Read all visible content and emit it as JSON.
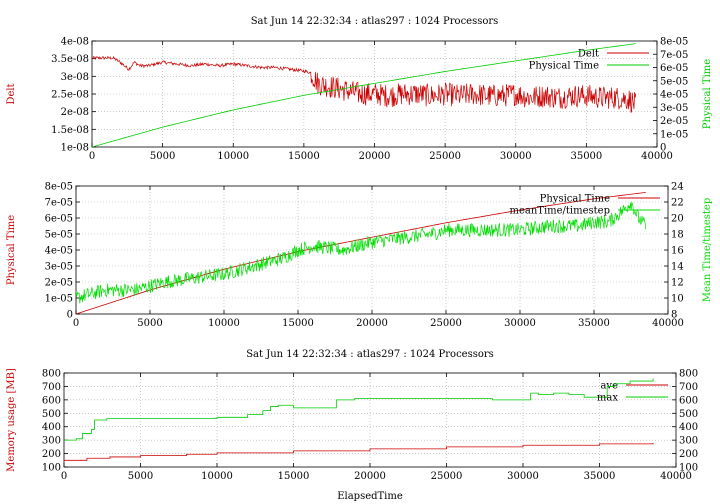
{
  "chart_data": [
    {
      "type": "line",
      "title": "Sat Jun 14 22:32:34 : atlas297 : 1024 Processors",
      "xlabel": "",
      "ylabel": "Delt",
      "y2label": "Physical Time",
      "xlim": [
        0,
        40000
      ],
      "ylim": [
        1e-08,
        4e-08
      ],
      "y2lim": [
        0,
        8e-05
      ],
      "xticks": [
        "0",
        "5000",
        "10000",
        "15000",
        "20000",
        "25000",
        "30000",
        "35000",
        "40000"
      ],
      "yticks": [
        "1e-08",
        "1.5e-08",
        "2e-08",
        "2.5e-08",
        "3e-08",
        "3.5e-08",
        "4e-08"
      ],
      "y2ticks": [
        "0",
        "1e-05",
        "2e-05",
        "3e-05",
        "4e-05",
        "5e-05",
        "6e-05",
        "7e-05",
        "8e-05"
      ],
      "grid": true,
      "legend_position": "top-right",
      "series": [
        {
          "name": "Delt",
          "axis": "y",
          "color": "#cc0000",
          "style": "noisy",
          "x": [
            0,
            1500,
            2000,
            2600,
            3000,
            3400,
            4000,
            5000,
            6000,
            7000,
            8000,
            9000,
            10000,
            11000,
            12000,
            13000,
            14000,
            15000,
            15500,
            16000,
            17000,
            18000,
            19000,
            20000,
            21000,
            22000,
            23000,
            24000,
            25000,
            26000,
            27000,
            28000,
            29000,
            30000,
            31000,
            32000,
            33000,
            34000,
            35000,
            36000,
            37000,
            38000,
            38500
          ],
          "y": [
            3.52e-08,
            3.52e-08,
            3.4e-08,
            3.2e-08,
            3.4e-08,
            3.3e-08,
            3.3e-08,
            3.4e-08,
            3.35e-08,
            3.3e-08,
            3.35e-08,
            3.3e-08,
            3.35e-08,
            3.3e-08,
            3.25e-08,
            3.25e-08,
            3.2e-08,
            3.15e-08,
            3.1e-08,
            2.8e-08,
            2.7e-08,
            2.6e-08,
            2.5e-08,
            2.5e-08,
            2.45e-08,
            2.5e-08,
            2.5e-08,
            2.45e-08,
            2.5e-08,
            2.45e-08,
            2.5e-08,
            2.45e-08,
            2.45e-08,
            2.5e-08,
            2.4e-08,
            2.45e-08,
            2.4e-08,
            2.45e-08,
            2.45e-08,
            2.4e-08,
            2.4e-08,
            2.35e-08,
            2.2e-08
          ]
        },
        {
          "name": "Physical Time",
          "axis": "y2",
          "color": "#00cc00",
          "style": "smooth",
          "x": [
            0,
            5000,
            10000,
            15000,
            20000,
            25000,
            30000,
            35000,
            38500
          ],
          "y": [
            0,
            1.5e-05,
            2.8e-05,
            3.9e-05,
            4.8e-05,
            5.7e-05,
            6.5e-05,
            7.3e-05,
            7.8e-05
          ]
        }
      ]
    },
    {
      "type": "line",
      "title": "",
      "xlabel": "",
      "ylabel": "Physical Time",
      "y2label": "Mean Time/timestep",
      "xlim": [
        0,
        40000
      ],
      "ylim": [
        0,
        8e-05
      ],
      "y2lim": [
        8,
        24
      ],
      "xticks": [
        "0",
        "5000",
        "10000",
        "15000",
        "20000",
        "25000",
        "30000",
        "35000",
        "40000"
      ],
      "yticks": [
        "0",
        "1e-05",
        "2e-05",
        "3e-05",
        "4e-05",
        "5e-05",
        "6e-05",
        "7e-05",
        "8e-05"
      ],
      "y2ticks": [
        "8",
        "10",
        "12",
        "14",
        "16",
        "18",
        "20",
        "22",
        "24"
      ],
      "grid": true,
      "legend_position": "top-right",
      "series": [
        {
          "name": "Physical Time",
          "axis": "y",
          "color": "#cc0000",
          "style": "smooth",
          "x": [
            0,
            5000,
            10000,
            15000,
            20000,
            25000,
            30000,
            35000,
            38500
          ],
          "y": [
            0,
            1.5e-05,
            2.8e-05,
            3.9e-05,
            4.8e-05,
            5.7e-05,
            6.5e-05,
            7.2e-05,
            7.6e-05
          ]
        },
        {
          "name": "meanTime/timestep",
          "axis": "y2",
          "color": "#00dd00",
          "style": "noisy",
          "x": [
            0,
            2000,
            4000,
            6000,
            8000,
            10000,
            12000,
            14000,
            15000,
            16000,
            18000,
            20000,
            22000,
            24000,
            25000,
            26000,
            28000,
            30000,
            32000,
            34000,
            35000,
            36000,
            37000,
            37500,
            38000,
            38500
          ],
          "y": [
            10,
            11,
            11,
            12,
            12.5,
            13,
            14,
            15,
            16,
            16.5,
            16,
            17,
            17.5,
            18,
            18.5,
            18.5,
            18.5,
            18.5,
            19,
            19,
            19.5,
            19.5,
            21,
            22,
            20,
            19
          ]
        }
      ]
    },
    {
      "type": "line",
      "title": "Sat Jun 14 22:32:34 : atlas297 : 1024 Processors",
      "xlabel": "ElapsedTime",
      "ylabel": "Memory usage [MB]",
      "y2label": "",
      "xlim": [
        0,
        40000
      ],
      "ylim": [
        100,
        800
      ],
      "y2lim": [
        100,
        800
      ],
      "xticks": [
        "0",
        "5000",
        "10000",
        "15000",
        "20000",
        "25000",
        "30000",
        "35000",
        "40000"
      ],
      "yticks": [
        "100",
        "200",
        "300",
        "400",
        "500",
        "600",
        "700",
        "800"
      ],
      "y2ticks": [
        "100",
        "200",
        "300",
        "400",
        "500",
        "600",
        "700",
        "800"
      ],
      "grid": true,
      "legend_position": "top-right",
      "series": [
        {
          "name": "ave",
          "axis": "y",
          "color": "#cc0000",
          "style": "step",
          "x": [
            0,
            800,
            1500,
            3000,
            5000,
            8000,
            10000,
            15000,
            20000,
            25000,
            30000,
            35000,
            38500
          ],
          "y": [
            150,
            150,
            165,
            175,
            185,
            195,
            205,
            220,
            235,
            250,
            262,
            272,
            280
          ]
        },
        {
          "name": "max",
          "axis": "y",
          "color": "#00cc00",
          "style": "step",
          "x": [
            0,
            800,
            1200,
            1800,
            2000,
            2800,
            5000,
            10000,
            12000,
            13000,
            13500,
            14000,
            15000,
            17000,
            17800,
            19000,
            20000,
            25000,
            28000,
            30000,
            30500,
            31000,
            32000,
            33000,
            34000,
            35000,
            35500,
            36000,
            37000,
            38500
          ],
          "y": [
            300,
            310,
            350,
            380,
            450,
            460,
            460,
            470,
            490,
            520,
            550,
            560,
            540,
            540,
            600,
            610,
            610,
            610,
            600,
            600,
            650,
            640,
            650,
            640,
            620,
            620,
            700,
            720,
            740,
            760
          ]
        }
      ]
    }
  ]
}
